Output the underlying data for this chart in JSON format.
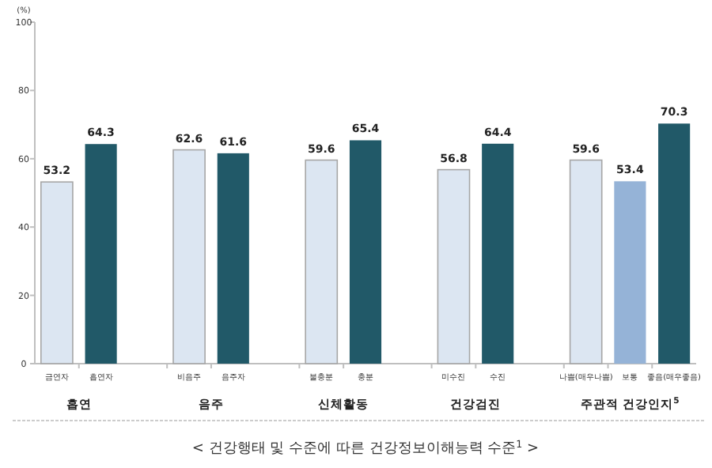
{
  "chart_data": {
    "type": "bar",
    "ylabel": "(%)",
    "categories": [
      "금연자",
      "흡연자",
      null,
      "비음주",
      "음주자",
      null,
      "불충분",
      "충분",
      null,
      "미수진",
      "수진",
      null,
      "나쁨(매우나쁨)",
      "보통",
      "좋음(매우좋음)"
    ],
    "values": [
      53.2,
      64.3,
      null,
      62.6,
      61.6,
      null,
      59.6,
      65.4,
      null,
      56.8,
      64.4,
      null,
      59.6,
      53.4,
      70.3
    ],
    "colors": [
      "#dce6f2",
      "#215968",
      null,
      "#dce6f2",
      "#215968",
      null,
      "#dce6f2",
      "#215968",
      null,
      "#dce6f2",
      "#215968",
      null,
      "#dce6f2",
      "#95b3d7",
      "#215968"
    ],
    "ylim": [
      0,
      100
    ],
    "yticks": [
      0,
      20,
      40,
      60,
      80,
      100
    ],
    "data_labels": true,
    "annotations": [
      "흡연",
      "음주",
      "신체활동",
      "건강검진",
      "주관적 건강인지$^{5}$",
      "< 건강행태 및 수준에 따른 건강정보이해능력 수준$^{1}$ >"
    ]
  }
}
